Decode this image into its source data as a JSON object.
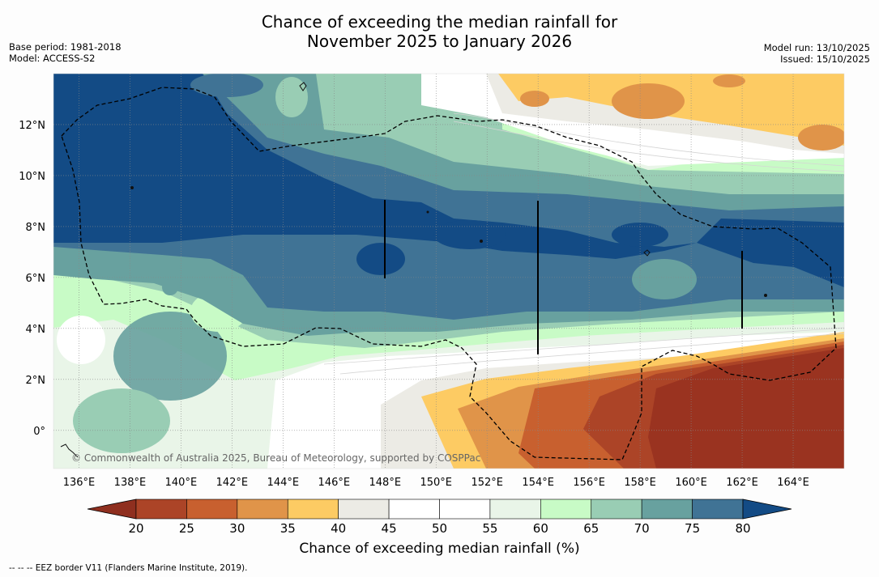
{
  "title_line1": "Chance of exceeding the median rainfall for",
  "title_line2": "November 2025 to January 2026",
  "base_period": "Base period: 1981-2018",
  "model": "Model: ACCESS-S2",
  "model_run": "Model run: 13/10/2025",
  "issued": "Issued: 15/10/2025",
  "copyright": "© Commonwealth of Australia 2025, Bureau of Meteorology, supported by COSPPac",
  "footer": "--  --  -- EEZ border V11 (Flanders Marine Institute, 2019).",
  "colorbar": {
    "label": "Chance of exceeding median rainfall (%)",
    "ticks": [
      "20",
      "25",
      "30",
      "35",
      "40",
      "45",
      "50",
      "55",
      "60",
      "65",
      "70",
      "75",
      "80"
    ],
    "under_color": "#8f2f1f",
    "over_color": "#134b85",
    "bins": [
      {
        "range": "20-25",
        "color": "#ac4427"
      },
      {
        "range": "25-30",
        "color": "#c8602f"
      },
      {
        "range": "30-35",
        "color": "#e09449"
      },
      {
        "range": "35-40",
        "color": "#fdcb63"
      },
      {
        "range": "40-45",
        "color": "#ecebe5"
      },
      {
        "range": "45-50",
        "color": "#ffffff"
      },
      {
        "range": "50-55",
        "color": "#ffffff"
      },
      {
        "range": "55-60",
        "color": "#e9f5e8"
      },
      {
        "range": "60-65",
        "color": "#c8fbc6"
      },
      {
        "range": "65-70",
        "color": "#99cdb4"
      },
      {
        "range": "70-75",
        "color": "#68a19f"
      },
      {
        "range": "75-80",
        "color": "#407395"
      }
    ]
  },
  "x_ticks": [
    "136°E",
    "138°E",
    "140°E",
    "142°E",
    "144°E",
    "146°E",
    "148°E",
    "150°E",
    "152°E",
    "154°E",
    "156°E",
    "158°E",
    "160°E",
    "162°E",
    "164°E"
  ],
  "y_ticks": [
    "12°N",
    "10°N",
    "8°N",
    "6°N",
    "4°N",
    "2°N",
    "0°"
  ],
  "extent": {
    "lon_min": 135,
    "lon_max": 166,
    "lat_min": -1.5,
    "lat_max": 14
  },
  "colors": {
    "high": "#134b85",
    "low": "#9a3320"
  }
}
